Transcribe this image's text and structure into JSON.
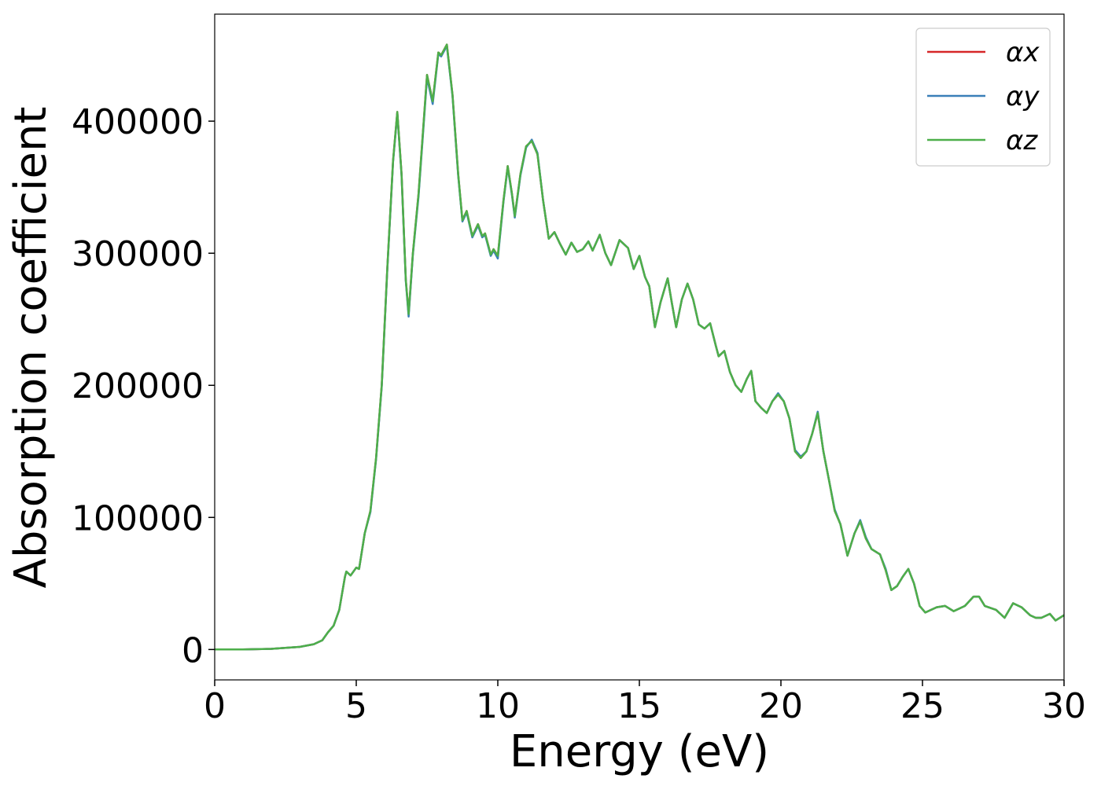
{
  "chart_data": {
    "type": "line",
    "xlabel": "Energy (eV)",
    "ylabel": "Absorption coefficient",
    "x": [
      0,
      1,
      2,
      3,
      3.5,
      3.8,
      4.0,
      4.2,
      4.4,
      4.6,
      4.65,
      4.8,
      5.0,
      5.1,
      5.3,
      5.5,
      5.7,
      5.9,
      6.1,
      6.3,
      6.45,
      6.6,
      6.75,
      6.85,
      7.0,
      7.2,
      7.5,
      7.7,
      7.9,
      8.0,
      8.2,
      8.4,
      8.6,
      8.75,
      8.9,
      9.1,
      9.3,
      9.45,
      9.55,
      9.75,
      9.85,
      10.0,
      10.2,
      10.35,
      10.5,
      10.6,
      10.8,
      11.0,
      11.2,
      11.4,
      11.6,
      11.8,
      12.0,
      12.2,
      12.4,
      12.6,
      12.8,
      13.0,
      13.2,
      13.35,
      13.6,
      13.8,
      14.0,
      14.3,
      14.6,
      14.8,
      15.0,
      15.2,
      15.35,
      15.55,
      15.75,
      16.0,
      16.15,
      16.3,
      16.5,
      16.7,
      16.9,
      17.1,
      17.3,
      17.5,
      17.7,
      17.8,
      18.0,
      18.2,
      18.4,
      18.6,
      18.8,
      18.95,
      19.1,
      19.3,
      19.5,
      19.7,
      19.9,
      20.1,
      20.3,
      20.5,
      20.7,
      20.9,
      21.1,
      21.3,
      21.5,
      21.7,
      21.9,
      22.1,
      22.35,
      22.6,
      22.8,
      23.0,
      23.2,
      23.5,
      23.7,
      23.9,
      24.1,
      24.3,
      24.5,
      24.7,
      24.9,
      25.1,
      25.5,
      25.8,
      26.1,
      26.5,
      26.8,
      27.0,
      27.2,
      27.6,
      27.9,
      28.2,
      28.5,
      28.8,
      29.0,
      29.2,
      29.5,
      29.7,
      30.0
    ],
    "series": [
      {
        "name": "αx",
        "color": "#d62728",
        "values": [
          0,
          0,
          500,
          2000,
          4000,
          7000,
          13000,
          18000,
          30000,
          55000,
          59000,
          56000,
          62000,
          61000,
          88000,
          105000,
          145000,
          200000,
          290000,
          370000,
          407000,
          360000,
          280000,
          254000,
          300000,
          345000,
          435000,
          415000,
          452000,
          450000,
          458000,
          420000,
          360000,
          325000,
          332000,
          313000,
          322000,
          313000,
          315000,
          299000,
          303000,
          298000,
          340000,
          366000,
          345000,
          328000,
          360000,
          381000,
          385000,
          375000,
          340000,
          311000,
          316000,
          307000,
          299000,
          308000,
          301000,
          303000,
          309000,
          302000,
          314000,
          300000,
          291000,
          310000,
          304000,
          288000,
          298000,
          282000,
          275000,
          244000,
          263000,
          281000,
          262000,
          244000,
          265000,
          277000,
          265000,
          246000,
          243000,
          247000,
          230000,
          222000,
          226000,
          210000,
          200000,
          195000,
          205000,
          211000,
          188000,
          183000,
          179000,
          188000,
          193000,
          188000,
          175000,
          150000,
          145000,
          150000,
          163000,
          179000,
          150000,
          128000,
          105000,
          95000,
          71000,
          88000,
          97000,
          84000,
          76000,
          72000,
          60000,
          45000,
          48000,
          55000,
          61000,
          50000,
          33000,
          28000,
          32000,
          33000,
          29000,
          33000,
          40000,
          40000,
          33000,
          30000,
          24000,
          35000,
          32000,
          26000,
          24000,
          24000,
          27000,
          22000,
          26000
        ]
      },
      {
        "name": "αy",
        "color": "#3a7fb8",
        "values": [
          0,
          0,
          500,
          2000,
          4000,
          7000,
          13000,
          18000,
          30000,
          55000,
          59000,
          56000,
          62000,
          61000,
          88000,
          104000,
          144000,
          199000,
          289000,
          369000,
          406000,
          359000,
          279000,
          252000,
          299000,
          343000,
          433000,
          413000,
          451000,
          449000,
          457000,
          419000,
          359000,
          324000,
          331000,
          312000,
          321000,
          312000,
          314000,
          298000,
          302000,
          296000,
          339000,
          365000,
          344000,
          327000,
          359000,
          380000,
          386000,
          376000,
          340000,
          311000,
          316000,
          307000,
          299000,
          308000,
          301000,
          303000,
          309000,
          302000,
          314000,
          300000,
          291000,
          310000,
          304000,
          288000,
          298000,
          282000,
          275000,
          244000,
          263000,
          281000,
          262000,
          244000,
          265000,
          277000,
          265000,
          246000,
          243000,
          247000,
          230000,
          222000,
          226000,
          210000,
          200000,
          195000,
          205000,
          211000,
          188000,
          183000,
          179000,
          188000,
          194000,
          188000,
          175000,
          151000,
          146000,
          150000,
          163000,
          180000,
          150000,
          128000,
          106000,
          95000,
          71000,
          88000,
          98000,
          85000,
          76000,
          72000,
          61000,
          45000,
          48000,
          55000,
          61000,
          50000,
          33000,
          28000,
          32000,
          33000,
          29000,
          33000,
          40000,
          40000,
          33000,
          30000,
          24000,
          35000,
          32000,
          26000,
          24000,
          24000,
          27000,
          22000,
          26000
        ]
      },
      {
        "name": "αz",
        "color": "#4daf4a",
        "values": [
          0,
          0,
          500,
          2000,
          4000,
          7000,
          13000,
          18000,
          30000,
          55000,
          59000,
          56000,
          62000,
          61000,
          88000,
          105000,
          145000,
          200000,
          290000,
          370000,
          407000,
          360000,
          280000,
          254000,
          300000,
          345000,
          435000,
          415000,
          452000,
          450000,
          458000,
          420000,
          360000,
          325000,
          332000,
          313000,
          322000,
          313000,
          315000,
          299000,
          303000,
          298000,
          340000,
          366000,
          345000,
          328000,
          360000,
          381000,
          385000,
          375000,
          340000,
          311000,
          316000,
          307000,
          299000,
          308000,
          301000,
          303000,
          309000,
          302000,
          314000,
          300000,
          291000,
          310000,
          304000,
          288000,
          298000,
          282000,
          275000,
          244000,
          263000,
          281000,
          262000,
          244000,
          265000,
          277000,
          265000,
          246000,
          243000,
          247000,
          230000,
          222000,
          226000,
          210000,
          200000,
          195000,
          205000,
          211000,
          188000,
          183000,
          179000,
          188000,
          193000,
          188000,
          175000,
          150000,
          145000,
          150000,
          163000,
          179000,
          150000,
          128000,
          105000,
          95000,
          71000,
          88000,
          97000,
          84000,
          76000,
          72000,
          60000,
          45000,
          48000,
          55000,
          61000,
          50000,
          33000,
          28000,
          32000,
          33000,
          29000,
          33000,
          40000,
          40000,
          33000,
          30000,
          24000,
          35000,
          32000,
          26000,
          24000,
          24000,
          27000,
          22000,
          26000
        ]
      }
    ],
    "xlim": [
      0,
      30
    ],
    "xticks": [
      0,
      5,
      10,
      15,
      20,
      25,
      30
    ],
    "ylim": [
      -23000,
      481000
    ],
    "yticks": [
      0,
      100000,
      200000,
      300000,
      400000
    ],
    "legend": "upper right",
    "grid": false
  }
}
